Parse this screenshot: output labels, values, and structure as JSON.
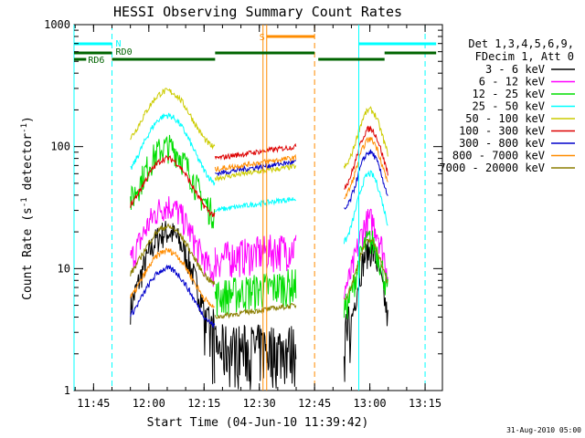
{
  "chart_data": {
    "type": "line",
    "title": "HESSI Observing Summary Count Rates",
    "xlabel": "Start Time (04-Jun-10 11:39:42)",
    "ylabel_main": "Count Rate (s",
    "ylabel_sup1": "-1",
    "ylabel_mid": " detector",
    "ylabel_sup2": "-1",
    "ylabel_end": ")",
    "yscale": "log",
    "ylim": [
      1,
      1000
    ],
    "xlim": [
      "11:39:42",
      "13:19:42"
    ],
    "xticks": [
      "11:45",
      "12:00",
      "12:15",
      "12:30",
      "12:45",
      "13:00",
      "13:15"
    ],
    "yticks": [
      "1",
      "10",
      "100",
      "1000"
    ],
    "date_stamp": "31-Aug-2010 05:00",
    "legend": {
      "header1": "Det 1,3,4,5,6,9,",
      "header2": "FDecim 1, Att 0",
      "placement": "right"
    },
    "series": [
      {
        "name": "3 - 6 keV",
        "color": "#000000"
      },
      {
        "name": "6 - 12 keV",
        "color": "#ff00ff"
      },
      {
        "name": "12 - 25 keV",
        "color": "#00dd00"
      },
      {
        "name": "25 - 50 keV",
        "color": "#00ffff"
      },
      {
        "name": "50 - 100 keV",
        "color": "#cccc00"
      },
      {
        "name": "100 - 300 keV",
        "color": "#dd0000"
      },
      {
        "name": "300 - 800 keV",
        "color": "#0000cc"
      },
      {
        "name": "800 - 7000 keV",
        "color": "#ff8c00"
      },
      {
        "name": "7000 - 20000 keV",
        "color": "#8b7d00"
      }
    ],
    "flag_labels": {
      "night": "N",
      "saa": "S",
      "rd0": "RD0",
      "rd6": "RD6"
    },
    "profiles": {
      "orbit1": {
        "time": [
          "11:55",
          "12:05",
          "12:18"
        ],
        "peak": [
          20,
          33,
          100,
          180,
          285,
          80,
          10,
          14,
          22
        ]
      },
      "orbit2": {
        "time": [
          "12:18",
          "12:40"
        ],
        "level": [
          1.5,
          12,
          6,
          30,
          55,
          80,
          60,
          65,
          4
        ]
      },
      "orbit3": {
        "time": [
          "12:53",
          "13:00",
          "13:05"
        ],
        "peak": [
          14,
          25,
          17,
          60,
          200,
          140,
          90,
          115,
          17
        ]
      }
    }
  }
}
